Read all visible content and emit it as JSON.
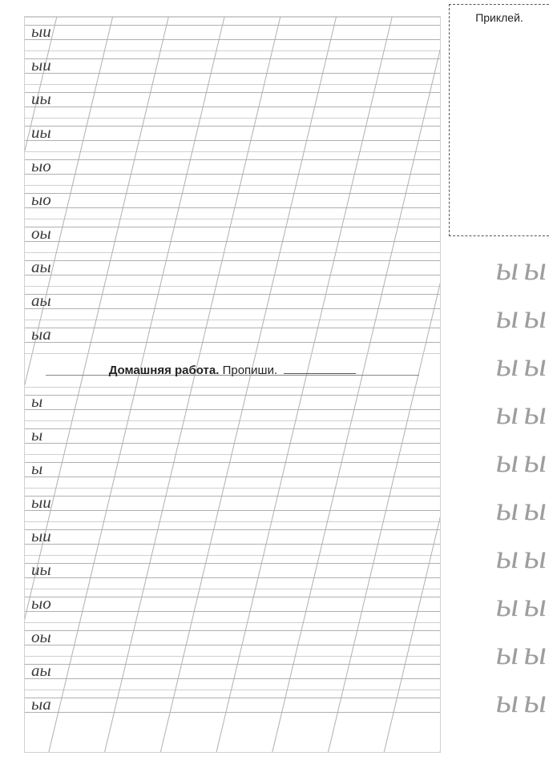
{
  "worksheet": {
    "rows_top": [
      {
        "sample": "ыи"
      },
      {
        "sample": "ыи"
      },
      {
        "sample": "иы"
      },
      {
        "sample": "иы"
      },
      {
        "sample": "ыо"
      },
      {
        "sample": "ыо"
      },
      {
        "sample": "оы"
      },
      {
        "sample": "аы"
      },
      {
        "sample": "аы"
      },
      {
        "sample": "ыа"
      }
    ],
    "instruction": {
      "bold": "Домашняя работа.",
      "plain": " Пропиши."
    },
    "rows_bottom": [
      {
        "sample": "ы"
      },
      {
        "sample": "ы"
      },
      {
        "sample": "ы"
      },
      {
        "sample": "ыи"
      },
      {
        "sample": "ыи"
      },
      {
        "sample": "иы"
      },
      {
        "sample": "ыо"
      },
      {
        "sample": "оы"
      },
      {
        "sample": "аы"
      },
      {
        "sample": "ыа"
      }
    ],
    "grid": {
      "line_color": "#b0b0b0",
      "diagonal_color": "#b0b0b0",
      "diagonal_count": 11,
      "diagonal_angle_offset": 220
    }
  },
  "glue_box": {
    "label": "Приклей."
  },
  "side_letters": {
    "pair": "ы ы",
    "count": 10,
    "color": "#9e9e9e"
  }
}
